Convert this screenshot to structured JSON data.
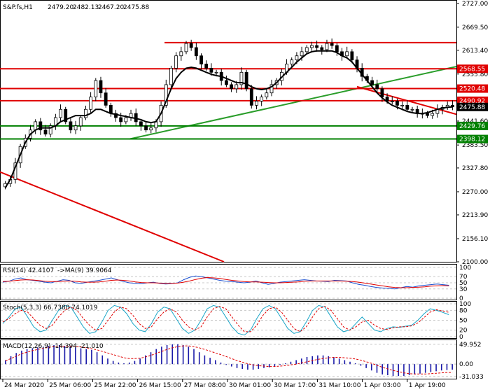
{
  "chart_data": [
    {
      "type": "candlestick",
      "symbol": "S&P.fs,H1",
      "ohlc": [
        2479.2,
        2482.13,
        2467.2,
        2475.88
      ],
      "ylim": [
        2100.0,
        2727.0
      ],
      "y_ticks": [
        2727.0,
        2669.5,
        2613.4,
        2555.8,
        2441.6,
        2383.5,
        2327.8,
        2270.0,
        2213.9,
        2156.1,
        2100.0
      ],
      "x_ticks": [
        "24 Mar 2020",
        "25 Mar 06:00",
        "25 Mar 22:00",
        "26 Mar 15:00",
        "27 Mar 08:00",
        "30 Mar 01:00",
        "30 Mar 17:00",
        "31 Mar 10:00",
        "1 Apr 03:00",
        "1 Apr 19:00"
      ],
      "levels": [
        {
          "value": 2568.55,
          "label": "2568.55",
          "color": "#e00000"
        },
        {
          "value": 2520.48,
          "label": "2520.48",
          "color": "#e00000"
        },
        {
          "value": 2490.92,
          "label": "2490.92",
          "color": "#e00000"
        },
        {
          "value": 2475.88,
          "label": "2475.88",
          "color": "#000000"
        },
        {
          "value": 2429.76,
          "label": "2429.76",
          "color": "#008000"
        },
        {
          "value": 2398.12,
          "label": "2398.12",
          "color": "#008000"
        }
      ],
      "resistance_top": 2632,
      "close_path": [
        2290,
        2300,
        2340,
        2380,
        2400,
        2420,
        2440,
        2420,
        2410,
        2430,
        2450,
        2470,
        2440,
        2420,
        2430,
        2450,
        2470,
        2500,
        2540,
        2510,
        2480,
        2460,
        2450,
        2440,
        2450,
        2460,
        2440,
        2430,
        2420,
        2425,
        2440,
        2480,
        2530,
        2570,
        2600,
        2610,
        2630,
        2620,
        2600,
        2580,
        2570,
        2560,
        2560,
        2540,
        2530,
        2520,
        2530,
        2560,
        2520,
        2480,
        2490,
        2500,
        2510,
        2530,
        2540,
        2560,
        2580,
        2590,
        2600,
        2610,
        2620,
        2625,
        2620,
        2615,
        2630,
        2625,
        2610,
        2600,
        2610,
        2590,
        2570,
        2550,
        2540,
        2530,
        2520,
        2500,
        2490,
        2490,
        2480,
        2480,
        2470,
        2470,
        2460,
        2460,
        2455,
        2460,
        2470,
        2475,
        2480,
        2476
      ],
      "ma_line": [
        2280,
        2300,
        2330,
        2360,
        2390,
        2410,
        2420,
        2425,
        2425,
        2425,
        2430,
        2440,
        2445,
        2450,
        2455,
        2455,
        2455,
        2460,
        2470,
        2470,
        2465,
        2460,
        2458,
        2455,
        2453,
        2450,
        2448,
        2445,
        2440,
        2438,
        2440,
        2460,
        2490,
        2520,
        2545,
        2560,
        2570,
        2572,
        2570,
        2565,
        2560,
        2555,
        2552,
        2550,
        2545,
        2540,
        2535,
        2535,
        2532,
        2525,
        2520,
        2518,
        2520,
        2525,
        2535,
        2548,
        2560,
        2572,
        2585,
        2595,
        2605,
        2610,
        2612,
        2612,
        2612,
        2612,
        2608,
        2600,
        2595,
        2585,
        2570,
        2555,
        2540,
        2525,
        2510,
        2498,
        2488,
        2480,
        2475,
        2470,
        2465,
        2462,
        2460,
        2460,
        2462,
        2466,
        2470,
        2473,
        2475,
        2476
      ]
    },
    {
      "type": "line",
      "title": "RSI(14) 42.4107",
      "subtitle": "->MA(9) 39.9064",
      "ylim": [
        0,
        100
      ],
      "y_ticks": [
        100,
        70,
        50,
        30,
        0
      ],
      "rsi": [
        52,
        55,
        62,
        66,
        60,
        58,
        55,
        52,
        50,
        55,
        60,
        58,
        50,
        48,
        52,
        55,
        58,
        62,
        66,
        60,
        54,
        50,
        48,
        47,
        50,
        52,
        48,
        46,
        47,
        50,
        60,
        68,
        72,
        70,
        66,
        62,
        58,
        55,
        54,
        52,
        50,
        52,
        56,
        50,
        45,
        48,
        52,
        54,
        56,
        58,
        60,
        58,
        56,
        55,
        54,
        58,
        57,
        56,
        50,
        45,
        42,
        38,
        35,
        33,
        32,
        30,
        34,
        38,
        36,
        40,
        42,
        44,
        46,
        44,
        42
      ],
      "ma": [
        54,
        55,
        57,
        59,
        60,
        59,
        57,
        55,
        54,
        54,
        55,
        56,
        55,
        53,
        52,
        52,
        53,
        55,
        58,
        59,
        58,
        56,
        53,
        51,
        50,
        50,
        49,
        48,
        48,
        49,
        52,
        56,
        61,
        65,
        67,
        66,
        64,
        61,
        58,
        56,
        54,
        53,
        53,
        52,
        51,
        50,
        50,
        51,
        52,
        53,
        55,
        56,
        56,
        56,
        56,
        56,
        56,
        55,
        54,
        52,
        49,
        46,
        43,
        40,
        37,
        35,
        34,
        34,
        35,
        36,
        37,
        39,
        40,
        41,
        40
      ]
    },
    {
      "type": "line",
      "title": "Stoch(5,3,3) 66.7380 74.1019",
      "ylim": [
        0,
        100
      ],
      "y_ticks": [
        100,
        80,
        50,
        20,
        0
      ],
      "main": [
        40,
        60,
        85,
        90,
        60,
        30,
        15,
        20,
        50,
        80,
        95,
        90,
        60,
        30,
        10,
        15,
        45,
        80,
        95,
        90,
        70,
        40,
        20,
        15,
        40,
        75,
        90,
        85,
        55,
        25,
        10,
        20,
        50,
        85,
        95,
        90,
        60,
        30,
        10,
        5,
        20,
        55,
        85,
        95,
        85,
        55,
        25,
        10,
        15,
        45,
        80,
        95,
        90,
        60,
        30,
        15,
        20,
        40,
        60,
        40,
        20,
        15,
        25,
        30,
        28,
        32,
        35,
        50,
        70,
        85,
        80,
        74,
        67
      ],
      "signal": [
        45,
        55,
        70,
        80,
        75,
        55,
        35,
        25,
        35,
        60,
        80,
        90,
        80,
        55,
        35,
        20,
        25,
        50,
        75,
        90,
        85,
        65,
        40,
        25,
        30,
        55,
        75,
        85,
        75,
        50,
        30,
        20,
        30,
        60,
        85,
        92,
        85,
        60,
        35,
        15,
        15,
        35,
        65,
        85,
        90,
        75,
        50,
        25,
        15,
        30,
        60,
        85,
        92,
        80,
        55,
        30,
        20,
        30,
        45,
        50,
        35,
        25,
        22,
        27,
        30,
        30,
        33,
        42,
        58,
        75,
        82,
        78,
        74
      ]
    },
    {
      "type": "bar",
      "title": "MACD(12,26,9) -14.394 -21.010",
      "y_ticks": [
        49.952,
        0.0,
        -31.033
      ],
      "ylim": [
        -35,
        55
      ],
      "histogram": [
        10,
        20,
        28,
        34,
        38,
        40,
        42,
        44,
        46,
        48,
        48,
        46,
        44,
        42,
        40,
        38,
        36,
        30,
        22,
        14,
        8,
        4,
        2,
        4,
        8,
        14,
        22,
        30,
        38,
        44,
        48,
        50,
        50,
        48,
        44,
        38,
        30,
        22,
        16,
        10,
        4,
        -2,
        -6,
        -10,
        -12,
        -14,
        -14,
        -12,
        -10,
        -8,
        -6,
        -2,
        2,
        6,
        10,
        14,
        18,
        20,
        22,
        22,
        20,
        18,
        14,
        10,
        6,
        2,
        -4,
        -10,
        -16,
        -22,
        -26,
        -28,
        -30,
        -30,
        -30,
        -28,
        -26,
        -24,
        -22,
        -20,
        -18,
        -16,
        -15,
        -14
      ],
      "signal": [
        8,
        14,
        20,
        26,
        30,
        34,
        37,
        40,
        42,
        44,
        45,
        45,
        45,
        44,
        43,
        41,
        39,
        36,
        32,
        28,
        24,
        20,
        16,
        14,
        14,
        15,
        18,
        22,
        27,
        32,
        37,
        41,
        44,
        46,
        46,
        44,
        41,
        37,
        33,
        28,
        24,
        19,
        14,
        9,
        5,
        1,
        -2,
        -4,
        -5,
        -6,
        -6,
        -5,
        -4,
        -2,
        0,
        3,
        6,
        9,
        12,
        14,
        16,
        17,
        17,
        16,
        15,
        13,
        10,
        6,
        2,
        -3,
        -8,
        -12,
        -16,
        -19,
        -22,
        -24,
        -25,
        -25,
        -25,
        -24,
        -23,
        -22,
        -21,
        -21
      ]
    }
  ]
}
